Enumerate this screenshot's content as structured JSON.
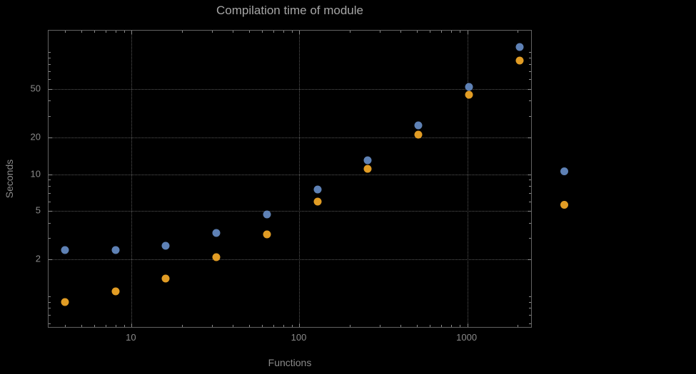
{
  "title": "Compilation time of module",
  "colors": {
    "background": "#000000",
    "title_text": "#a6a6a6",
    "axis_text": "#8a8a8a",
    "frame": "#636363",
    "gridline": "#595959",
    "series_blue": "#5e81b5",
    "series_orange": "#e19c24"
  },
  "chart_data": {
    "type": "scatter",
    "title": "Compilation time of module",
    "xlabel": "Functions",
    "ylabel": "Seconds",
    "xscale": "log",
    "yscale": "log",
    "xlim": [
      3.2,
      2400
    ],
    "ylim": [
      0.56,
      150
    ],
    "grid": true,
    "grid_style": "dotted",
    "xticks": [
      10,
      100,
      1000
    ],
    "yticks": [
      2,
      5,
      10,
      20,
      50
    ],
    "x": [
      4,
      8,
      16,
      32,
      64,
      128,
      256,
      512,
      1024,
      2048
    ],
    "series": [
      {
        "id": "blue",
        "label": "",
        "color": "#5e81b5",
        "values": [
          2.4,
          2.4,
          2.6,
          3.3,
          4.7,
          7.5,
          13,
          25,
          52,
          110
        ]
      },
      {
        "id": "orange",
        "label": "",
        "color": "#e19c24",
        "values": [
          0.9,
          1.1,
          1.4,
          2.1,
          3.2,
          6,
          11,
          21,
          45,
          85
        ]
      }
    ],
    "legend_position": "right-outside"
  }
}
